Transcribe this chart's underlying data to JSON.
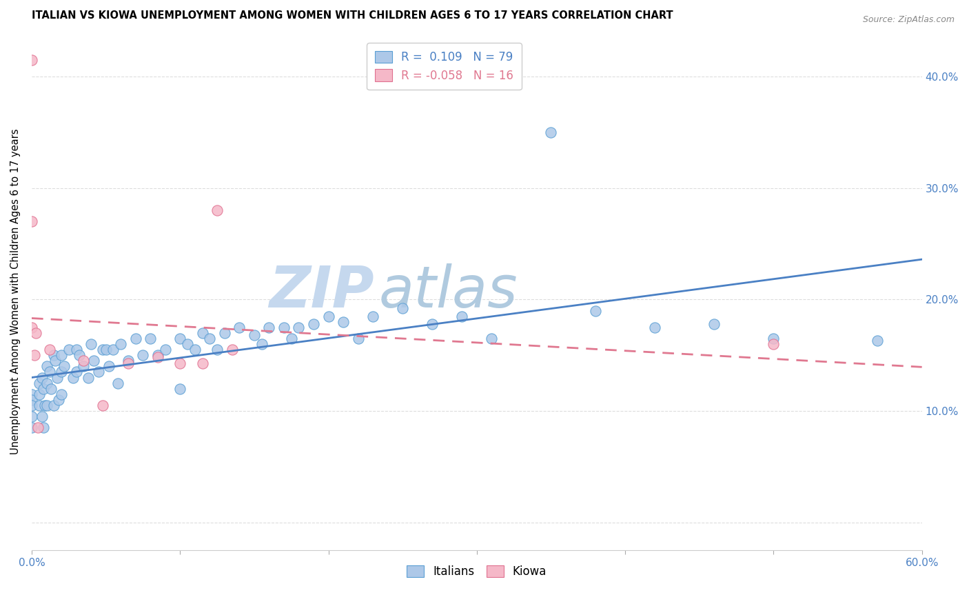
{
  "title": "ITALIAN VS KIOWA UNEMPLOYMENT AMONG WOMEN WITH CHILDREN AGES 6 TO 17 YEARS CORRELATION CHART",
  "source": "Source: ZipAtlas.com",
  "ylabel": "Unemployment Among Women with Children Ages 6 to 17 years",
  "xlim": [
    0.0,
    0.6
  ],
  "ylim": [
    -0.025,
    0.44
  ],
  "x_ticks": [
    0.0,
    0.1,
    0.2,
    0.3,
    0.4,
    0.5,
    0.6
  ],
  "x_tick_labels_ends": {
    "0.0": "0.0%",
    "0.6": "60.0%"
  },
  "y_ticks_right": [
    0.1,
    0.2,
    0.3,
    0.4
  ],
  "y_tick_labels_right": [
    "10.0%",
    "20.0%",
    "30.0%",
    "40.0%"
  ],
  "R_italian": 0.109,
  "N_italian": 79,
  "R_kiowa": -0.058,
  "N_kiowa": 16,
  "color_italian_fill": "#adc8e8",
  "color_italian_edge": "#5a9fd4",
  "color_kiowa_fill": "#f5b8c8",
  "color_kiowa_edge": "#e07090",
  "color_trendline_italian": "#4a80c4",
  "color_trendline_kiowa": "#e07890",
  "watermark_zip_color": "#c8daf0",
  "watermark_atlas_color": "#b8cce8",
  "grid_color": "#dddddd",
  "italians_points_x": [
    0.0,
    0.0,
    0.0,
    0.0,
    0.0,
    0.005,
    0.005,
    0.005,
    0.007,
    0.007,
    0.008,
    0.008,
    0.009,
    0.01,
    0.01,
    0.01,
    0.012,
    0.013,
    0.015,
    0.015,
    0.016,
    0.017,
    0.018,
    0.02,
    0.02,
    0.02,
    0.022,
    0.025,
    0.028,
    0.03,
    0.03,
    0.032,
    0.035,
    0.038,
    0.04,
    0.042,
    0.045,
    0.048,
    0.05,
    0.052,
    0.055,
    0.058,
    0.06,
    0.065,
    0.07,
    0.075,
    0.08,
    0.085,
    0.09,
    0.1,
    0.1,
    0.105,
    0.11,
    0.115,
    0.12,
    0.125,
    0.13,
    0.14,
    0.15,
    0.155,
    0.16,
    0.17,
    0.175,
    0.18,
    0.19,
    0.2,
    0.21,
    0.22,
    0.23,
    0.25,
    0.27,
    0.29,
    0.31,
    0.35,
    0.38,
    0.42,
    0.46,
    0.5,
    0.57
  ],
  "italians_points_y": [
    0.115,
    0.11,
    0.105,
    0.095,
    0.085,
    0.125,
    0.115,
    0.105,
    0.13,
    0.095,
    0.12,
    0.085,
    0.105,
    0.14,
    0.125,
    0.105,
    0.135,
    0.12,
    0.15,
    0.105,
    0.145,
    0.13,
    0.11,
    0.15,
    0.135,
    0.115,
    0.14,
    0.155,
    0.13,
    0.155,
    0.135,
    0.15,
    0.14,
    0.13,
    0.16,
    0.145,
    0.135,
    0.155,
    0.155,
    0.14,
    0.155,
    0.125,
    0.16,
    0.145,
    0.165,
    0.15,
    0.165,
    0.15,
    0.155,
    0.165,
    0.12,
    0.16,
    0.155,
    0.17,
    0.165,
    0.155,
    0.17,
    0.175,
    0.168,
    0.16,
    0.175,
    0.175,
    0.165,
    0.175,
    0.178,
    0.185,
    0.18,
    0.165,
    0.185,
    0.192,
    0.178,
    0.185,
    0.165,
    0.35,
    0.19,
    0.175,
    0.178,
    0.165,
    0.163
  ],
  "kiowa_points_x": [
    0.0,
    0.0,
    0.0,
    0.002,
    0.003,
    0.004,
    0.012,
    0.035,
    0.048,
    0.065,
    0.085,
    0.1,
    0.115,
    0.125,
    0.135,
    0.5
  ],
  "kiowa_points_y": [
    0.415,
    0.27,
    0.175,
    0.15,
    0.17,
    0.085,
    0.155,
    0.145,
    0.105,
    0.143,
    0.148,
    0.143,
    0.143,
    0.28,
    0.155,
    0.16
  ]
}
